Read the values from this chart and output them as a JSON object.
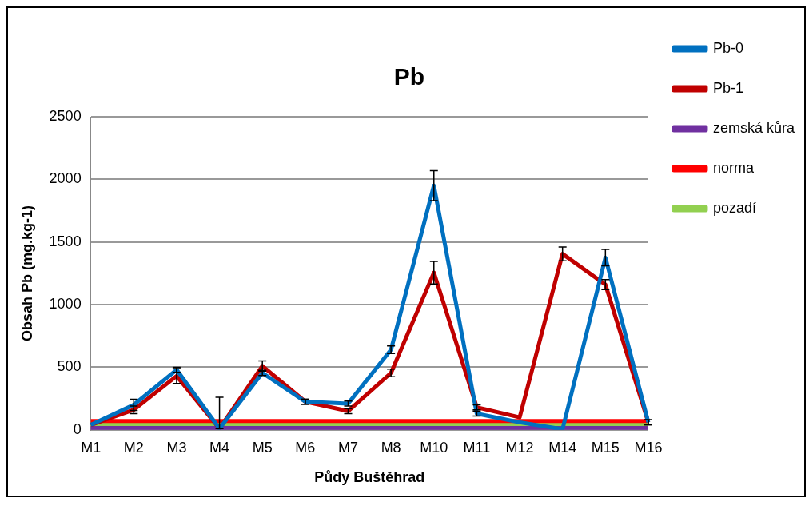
{
  "chart_data": {
    "type": "line",
    "title": "Pb",
    "xlabel": "Půdy Buštěhrad",
    "ylabel": "Obsah Pb (mg.kg-1)",
    "categories": [
      "M1",
      "M2",
      "M3",
      "M4",
      "M5",
      "M6",
      "M7",
      "M8",
      "M10",
      "M11",
      "M12",
      "M14",
      "M15",
      "M16"
    ],
    "series": [
      {
        "name": "Pb-0",
        "color": "#0070c0",
        "values": [
          40,
          200,
          480,
          10,
          455,
          225,
          210,
          640,
          1950,
          130,
          60,
          5,
          1375,
          60
        ],
        "errors": [
          null,
          45,
          20,
          [
            10,
            260
          ],
          20,
          20,
          20,
          30,
          120,
          20,
          null,
          null,
          65,
          20
        ]
      },
      {
        "name": "Pb-1",
        "color": "#c00000",
        "values": [
          40,
          160,
          430,
          10,
          510,
          225,
          150,
          455,
          1255,
          180,
          100,
          1405,
          1160,
          60
        ],
        "errors": [
          null,
          30,
          60,
          null,
          40,
          20,
          20,
          30,
          90,
          20,
          null,
          55,
          40,
          20
        ]
      },
      {
        "name": "zemská kůra",
        "color": "#7030a0",
        "values": [
          15,
          15,
          15,
          15,
          15,
          15,
          15,
          15,
          15,
          15,
          15,
          15,
          15,
          15
        ]
      },
      {
        "name": "norma",
        "color": "#ff0000",
        "values": [
          70,
          70,
          70,
          70,
          70,
          70,
          70,
          70,
          70,
          70,
          70,
          70,
          70,
          70
        ]
      },
      {
        "name": "pozadí",
        "color": "#92d050",
        "values": [
          45,
          45,
          45,
          45,
          45,
          45,
          45,
          45,
          45,
          45,
          45,
          45,
          45,
          45
        ]
      }
    ],
    "ylim": [
      0,
      2500
    ],
    "yticks": [
      0,
      500,
      1000,
      1500,
      2000,
      2500
    ],
    "grid": "y",
    "legend": "right",
    "line_style": "solid"
  }
}
